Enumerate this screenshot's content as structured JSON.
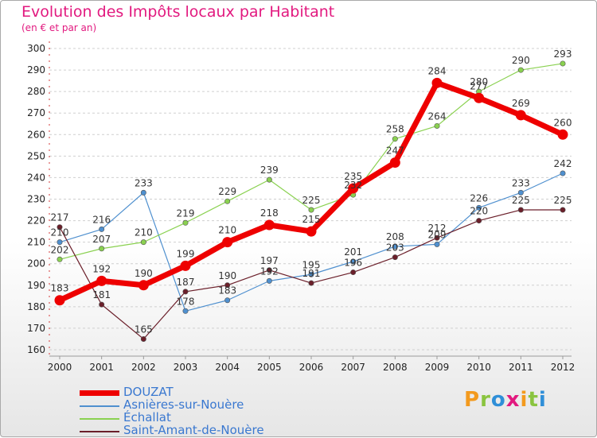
{
  "header": {
    "title": "Evolution des Impôts locaux par Habitant",
    "subtitle": "(en € et par an)"
  },
  "logo": {
    "text": "Proxiti"
  },
  "colors": {
    "accent": "#e2197f",
    "douzat": "#ee0000",
    "asnieres": "#4f90cf",
    "echallat": "#8ad150",
    "saint_amant": "#6b1f2a"
  },
  "chart_data": {
    "type": "line",
    "title": "Evolution des Impôts locaux par Habitant",
    "subtitle": "(en € et par an)",
    "xlabel": "",
    "ylabel": "",
    "categories": [
      "2000",
      "2001",
      "2002",
      "2003",
      "2004",
      "2005",
      "2006",
      "2007",
      "2008",
      "2009",
      "2010",
      "2011",
      "2012"
    ],
    "ylim": [
      160,
      300
    ],
    "yticks": [
      160,
      170,
      180,
      190,
      200,
      210,
      220,
      230,
      240,
      250,
      260,
      270,
      280,
      290,
      300
    ],
    "grid": "horizontal dashed",
    "legend": "bottom-left",
    "series": [
      {
        "name": "Asnières-sur-Nouère",
        "color": "#4f90cf",
        "width": 1.2,
        "values": [
          210,
          216,
          233,
          178,
          183,
          192,
          195,
          201,
          208,
          209,
          226,
          233,
          242
        ],
        "labels": [
          "210",
          "216",
          "233",
          "178",
          "183",
          "192",
          "195",
          "201",
          "208",
          "209",
          "226",
          "233",
          "242"
        ]
      },
      {
        "name": "Échallat",
        "color": "#8ad150",
        "width": 1.2,
        "values": [
          202,
          207,
          210,
          219,
          229,
          239,
          225,
          232,
          258,
          264,
          280,
          290,
          293
        ],
        "labels": [
          "202",
          "207",
          "210",
          "219",
          "229",
          "239",
          "225",
          "232",
          "258",
          "264",
          "280",
          "290",
          "293"
        ]
      },
      {
        "name": "Saint-Amant-de-Nouère",
        "color": "#6b1f2a",
        "width": 1.2,
        "values": [
          217,
          181,
          165,
          187,
          190,
          197,
          191,
          196,
          203,
          212,
          220,
          225,
          225
        ],
        "labels": [
          "217",
          "181",
          "165",
          "187",
          "190",
          "197",
          "191",
          "196",
          "203",
          "212",
          "220",
          "225",
          "225"
        ]
      },
      {
        "name": "DOUZAT",
        "color": "#ee0000",
        "width": 7,
        "values": [
          183,
          192,
          190,
          199,
          210,
          218,
          215,
          235,
          247,
          284,
          277,
          269,
          260
        ],
        "labels": [
          "183",
          "192",
          "190",
          "199",
          "210",
          "218",
          "215",
          "235",
          "247",
          "284",
          "277",
          "269",
          "260"
        ]
      }
    ]
  }
}
